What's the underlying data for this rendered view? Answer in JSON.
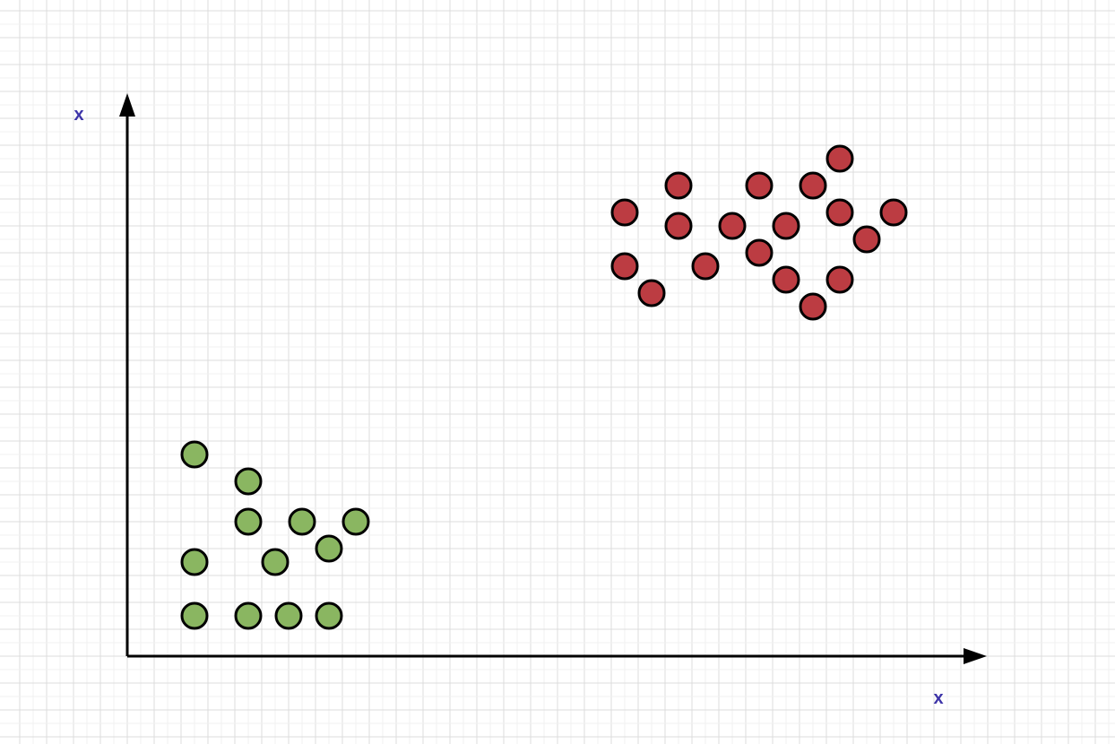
{
  "colors": {
    "background": "#ffffff",
    "grid_major": "#dcdcdc",
    "grid_minor": "#f0f0f0",
    "axis": "#000000",
    "axis_label": "#3d34a8",
    "point_stroke": "#000000"
  },
  "chart_data": {
    "type": "scatter",
    "grid": true,
    "xlabel": "x",
    "ylabel": "x",
    "xlim": [
      0,
      32
    ],
    "ylim": [
      0,
      20.7
    ],
    "series": [
      {
        "color": "#8ab661",
        "points": [
          [
            2.5,
            7.5
          ],
          [
            4.5,
            6.5
          ],
          [
            6.5,
            5
          ],
          [
            4.5,
            5
          ],
          [
            8.5,
            5
          ],
          [
            7.5,
            4
          ],
          [
            5.5,
            3.5
          ],
          [
            2.5,
            3.5
          ],
          [
            2.5,
            1.5
          ],
          [
            4.5,
            1.5
          ],
          [
            6,
            1.5
          ],
          [
            7.5,
            1.5
          ]
        ]
      },
      {
        "color": "#bc3c42",
        "points": [
          [
            26.5,
            18.5
          ],
          [
            20.5,
            17.5
          ],
          [
            23.5,
            17.5
          ],
          [
            25.5,
            17.5
          ],
          [
            18.5,
            16.5
          ],
          [
            26.5,
            16.5
          ],
          [
            28.5,
            16.5
          ],
          [
            20.5,
            16
          ],
          [
            22.5,
            16
          ],
          [
            24.5,
            16
          ],
          [
            27.5,
            15.5
          ],
          [
            23.5,
            15
          ],
          [
            18.5,
            14.5
          ],
          [
            21.5,
            14.5
          ],
          [
            24.5,
            14
          ],
          [
            26.5,
            14
          ],
          [
            19.5,
            13.5
          ],
          [
            25.5,
            13
          ]
        ]
      }
    ]
  }
}
